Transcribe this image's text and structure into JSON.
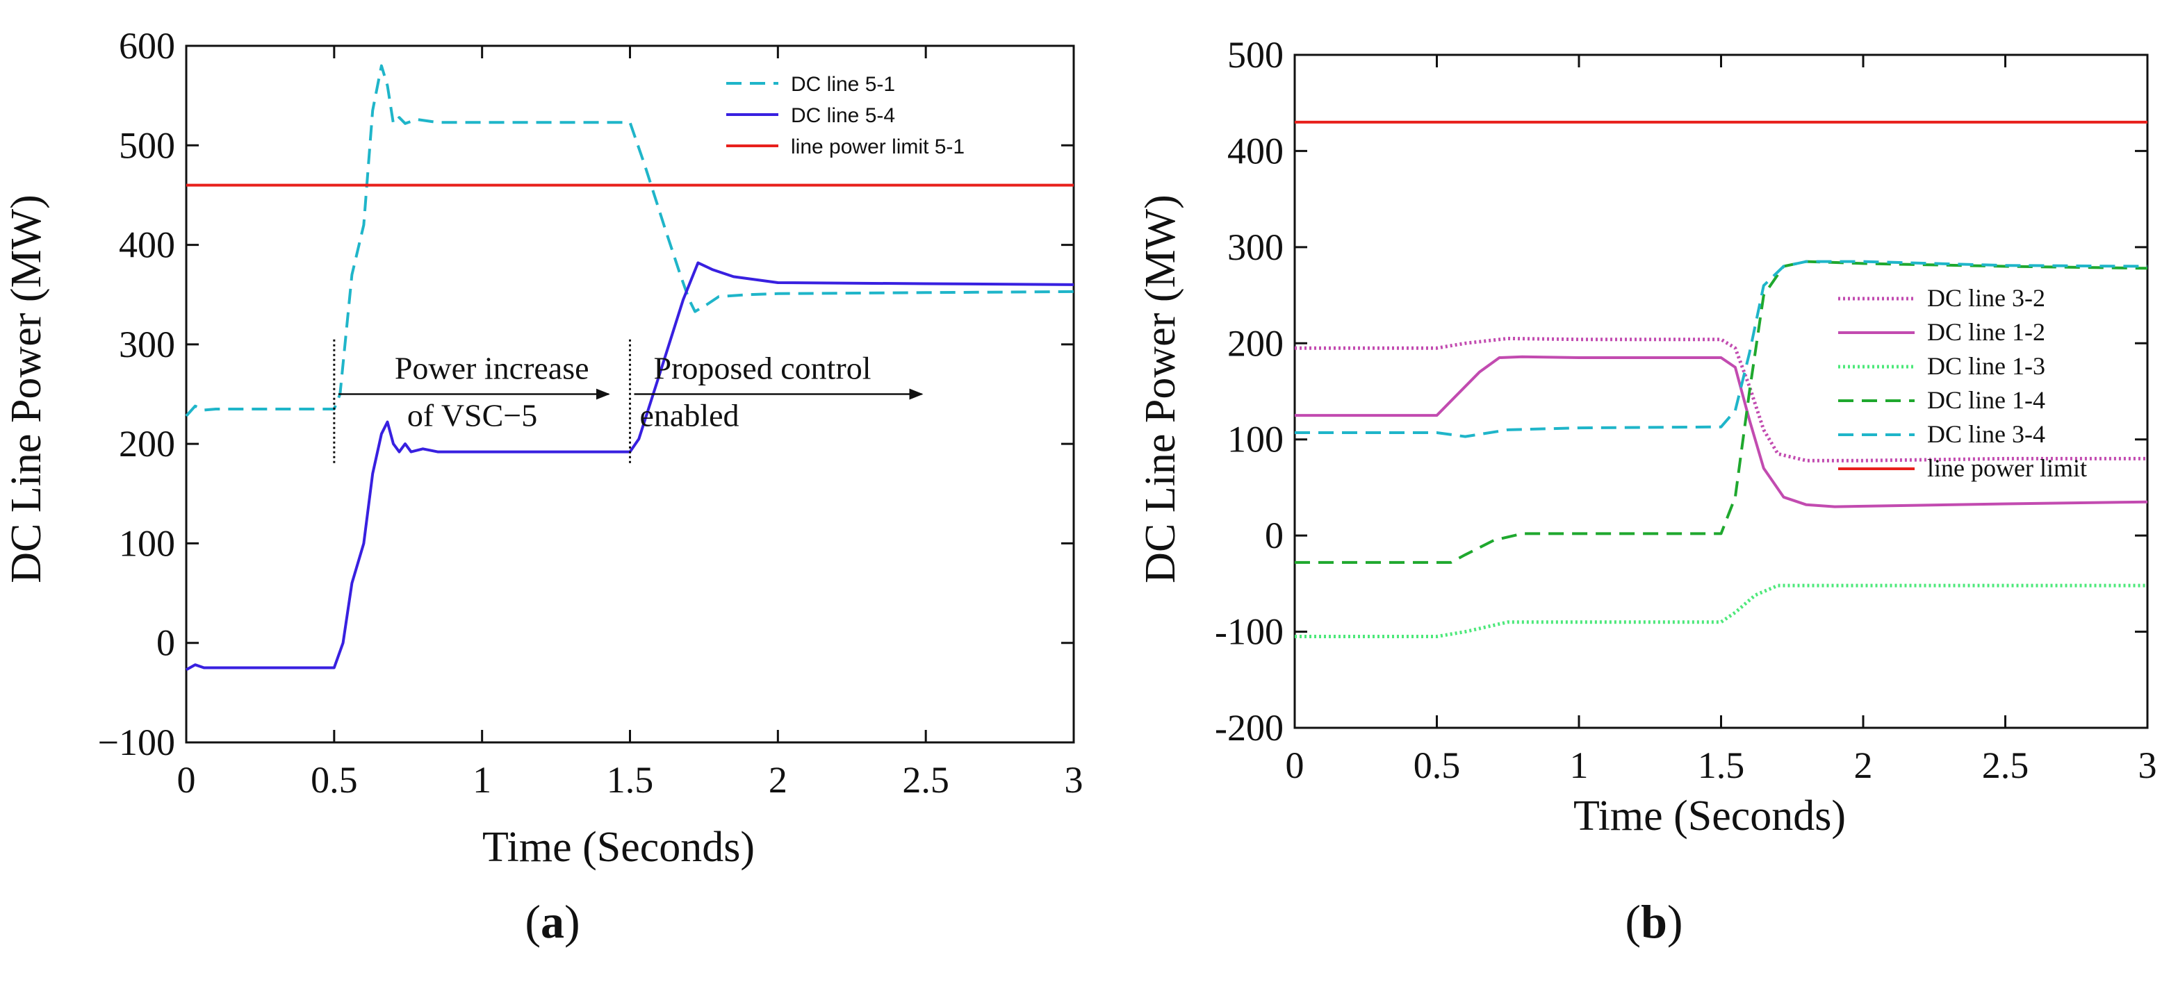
{
  "chart_data": [
    {
      "id": "a",
      "type": "line",
      "caption_letter": "a",
      "xlabel": "Time (Seconds)",
      "ylabel": "DC Line  Power (MW)",
      "xlim": [
        0,
        3
      ],
      "ylim": [
        -100,
        600
      ],
      "xticks": [
        "0",
        "0.5",
        "1",
        "1.5",
        "2",
        "2.5",
        "3"
      ],
      "yticks": [
        "600",
        "500",
        "400",
        "300",
        "200",
        "100",
        "0",
        "−100"
      ],
      "legend_position": "top-right",
      "series": [
        {
          "name": "DC line 5-1",
          "color": "#1fb5c9",
          "dash": "dashed",
          "points": [
            [
              0,
              228
            ],
            [
              0.03,
              238
            ],
            [
              0.06,
              234
            ],
            [
              0.1,
              235
            ],
            [
              0.5,
              235
            ],
            [
              0.52,
              250
            ],
            [
              0.56,
              370
            ],
            [
              0.6,
              420
            ],
            [
              0.63,
              535
            ],
            [
              0.66,
              580
            ],
            [
              0.68,
              560
            ],
            [
              0.7,
              522
            ],
            [
              0.72,
              528
            ],
            [
              0.74,
              522
            ],
            [
              0.78,
              526
            ],
            [
              0.85,
              523
            ],
            [
              1.0,
              523
            ],
            [
              1.5,
              523
            ],
            [
              1.55,
              480
            ],
            [
              1.62,
              415
            ],
            [
              1.67,
              370
            ],
            [
              1.7,
              345
            ],
            [
              1.72,
              333
            ],
            [
              1.76,
              340
            ],
            [
              1.8,
              348
            ],
            [
              1.9,
              350
            ],
            [
              2.0,
              351
            ],
            [
              2.5,
              352
            ],
            [
              3.0,
              353
            ]
          ]
        },
        {
          "name": "DC line 5-4",
          "color": "#3820e0",
          "dash": "solid",
          "points": [
            [
              0,
              -27
            ],
            [
              0.03,
              -22
            ],
            [
              0.06,
              -25
            ],
            [
              0.1,
              -25
            ],
            [
              0.5,
              -25
            ],
            [
              0.53,
              0
            ],
            [
              0.56,
              60
            ],
            [
              0.6,
              100
            ],
            [
              0.63,
              170
            ],
            [
              0.66,
              210
            ],
            [
              0.68,
              222
            ],
            [
              0.7,
              200
            ],
            [
              0.72,
              192
            ],
            [
              0.74,
              200
            ],
            [
              0.76,
              192
            ],
            [
              0.8,
              195
            ],
            [
              0.85,
              192
            ],
            [
              1.0,
              192
            ],
            [
              1.5,
              192
            ],
            [
              1.53,
              205
            ],
            [
              1.6,
              270
            ],
            [
              1.68,
              345
            ],
            [
              1.73,
              382
            ],
            [
              1.78,
              375
            ],
            [
              1.85,
              368
            ],
            [
              2.0,
              362
            ],
            [
              2.5,
              361
            ],
            [
              3.0,
              360
            ]
          ]
        },
        {
          "name": "line power limit 5-1",
          "color": "#e8201c",
          "dash": "solid",
          "points": [
            [
              0,
              460
            ],
            [
              3,
              460
            ]
          ]
        }
      ],
      "annotations": [
        {
          "lines": [
            "Power increase",
            "of VSC−5"
          ],
          "time": 0.5
        },
        {
          "lines": [
            "Proposed control",
            "enabled"
          ],
          "time": 1.5
        }
      ]
    },
    {
      "id": "b",
      "type": "line",
      "caption_letter": "b",
      "xlabel": "Time (Seconds)",
      "ylabel": "DC Line  Power (MW)",
      "xlim": [
        0,
        3
      ],
      "ylim": [
        -200,
        500
      ],
      "xticks": [
        "0",
        "0.5",
        "1",
        "1.5",
        "2",
        "2.5",
        "3"
      ],
      "yticks": [
        "500",
        "400",
        "300",
        "200",
        "100",
        "0",
        "-100",
        "-200"
      ],
      "legend_position": "center-right",
      "series": [
        {
          "name": "DC line 3-2",
          "color": "#c24bb0",
          "dash": "dotted",
          "points": [
            [
              0,
              195
            ],
            [
              0.5,
              195
            ],
            [
              0.6,
              200
            ],
            [
              0.75,
              205
            ],
            [
              1.0,
              204
            ],
            [
              1.5,
              204
            ],
            [
              1.55,
              195
            ],
            [
              1.6,
              155
            ],
            [
              1.65,
              110
            ],
            [
              1.7,
              85
            ],
            [
              1.8,
              78
            ],
            [
              2.0,
              78
            ],
            [
              2.5,
              80
            ],
            [
              3.0,
              80
            ]
          ]
        },
        {
          "name": "DC line 1-2",
          "color": "#c24bb0",
          "dash": "solid",
          "points": [
            [
              0,
              125
            ],
            [
              0.5,
              125
            ],
            [
              0.55,
              140
            ],
            [
              0.65,
              170
            ],
            [
              0.72,
              185
            ],
            [
              0.8,
              186
            ],
            [
              1.0,
              185
            ],
            [
              1.5,
              185
            ],
            [
              1.55,
              175
            ],
            [
              1.6,
              120
            ],
            [
              1.65,
              70
            ],
            [
              1.72,
              40
            ],
            [
              1.8,
              32
            ],
            [
              1.9,
              30
            ],
            [
              2.5,
              33
            ],
            [
              3.0,
              35
            ]
          ]
        },
        {
          "name": "DC line 1-3",
          "color": "#4de87a",
          "dash": "dotted",
          "points": [
            [
              0,
              -105
            ],
            [
              0.5,
              -105
            ],
            [
              0.6,
              -100
            ],
            [
              0.75,
              -90
            ],
            [
              1.0,
              -90
            ],
            [
              1.5,
              -90
            ],
            [
              1.55,
              -80
            ],
            [
              1.62,
              -62
            ],
            [
              1.7,
              -52
            ],
            [
              2.0,
              -52
            ],
            [
              3.0,
              -52
            ]
          ]
        },
        {
          "name": "DC line 1-4",
          "color": "#1fa82e",
          "dash": "dashed",
          "points": [
            [
              0,
              -28
            ],
            [
              0.55,
              -28
            ],
            [
              0.6,
              -20
            ],
            [
              0.7,
              -5
            ],
            [
              0.8,
              2
            ],
            [
              1.0,
              2
            ],
            [
              1.5,
              2
            ],
            [
              1.55,
              40
            ],
            [
              1.6,
              150
            ],
            [
              1.65,
              250
            ],
            [
              1.72,
              280
            ],
            [
              1.8,
              285
            ],
            [
              2.0,
              283
            ],
            [
              2.5,
              280
            ],
            [
              3.0,
              278
            ]
          ]
        },
        {
          "name": "DC line 3-4",
          "color": "#1fb5c9",
          "dash": "dashed",
          "points": [
            [
              0,
              107
            ],
            [
              0.5,
              107
            ],
            [
              0.6,
              103
            ],
            [
              0.75,
              110
            ],
            [
              1.0,
              112
            ],
            [
              1.5,
              113
            ],
            [
              1.55,
              130
            ],
            [
              1.6,
              190
            ],
            [
              1.65,
              260
            ],
            [
              1.72,
              280
            ],
            [
              1.8,
              285
            ],
            [
              2.0,
              285
            ],
            [
              2.5,
              281
            ],
            [
              3.0,
              280
            ]
          ]
        },
        {
          "name": "line power limit",
          "color": "#e8201c",
          "dash": "solid",
          "points": [
            [
              0,
              430
            ],
            [
              3,
              430
            ]
          ]
        }
      ]
    }
  ]
}
